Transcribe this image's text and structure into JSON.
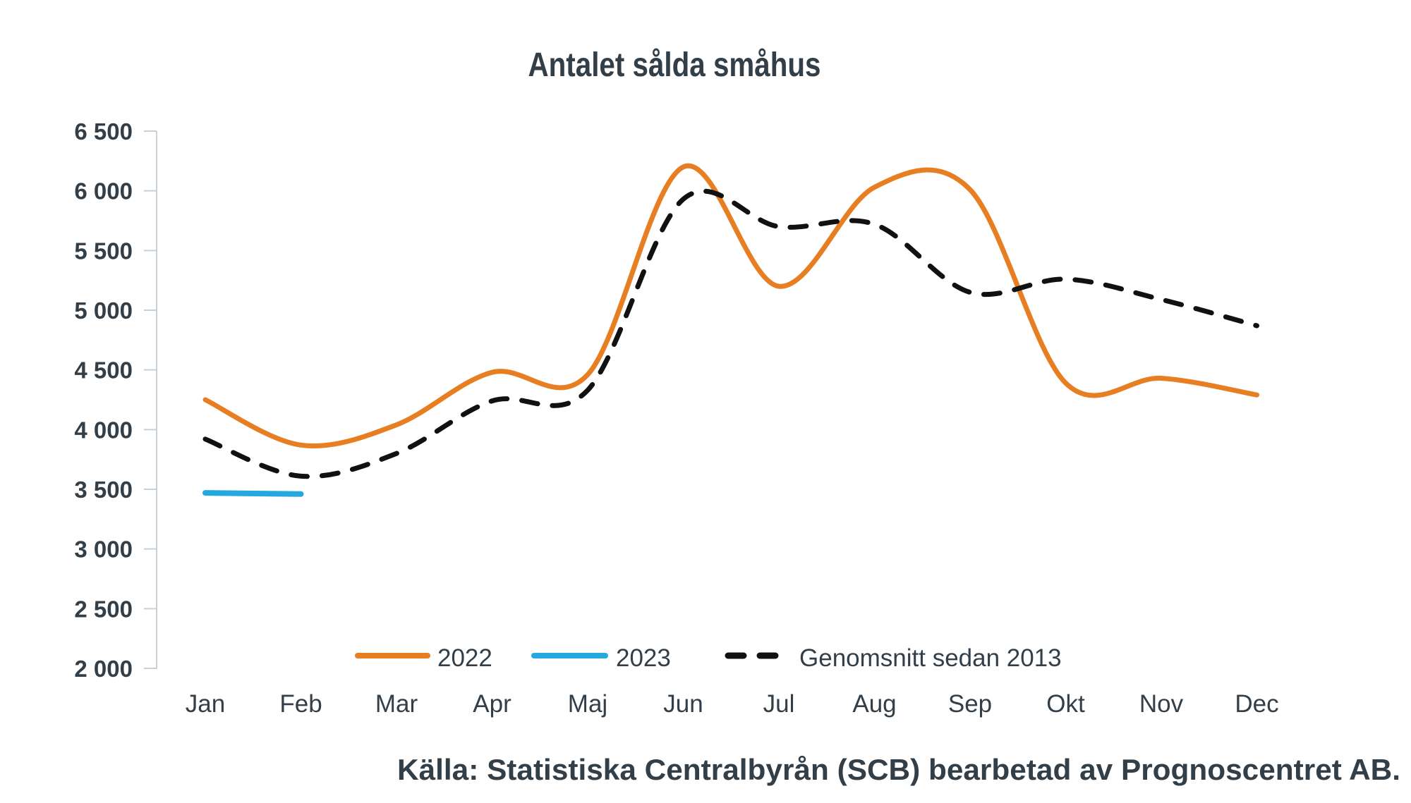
{
  "title": "Antalet sålda småhus",
  "source": "Källa: Statistiska Centralbyrån (SCB) bearbetad av Prognoscentret AB.",
  "colors": {
    "accent_orange": "#E87E22",
    "accent_blue": "#25A8DF",
    "dashed_black": "#111111",
    "text_dark": "#333F48",
    "axis_gray": "#C9D1D7",
    "background": "#FFFFFF"
  },
  "chart_data": {
    "type": "line",
    "title": "Antalet sålda småhus",
    "categories": [
      "Jan",
      "Feb",
      "Mar",
      "Apr",
      "Maj",
      "Jun",
      "Jul",
      "Aug",
      "Sep",
      "Okt",
      "Nov",
      "Dec"
    ],
    "series": [
      {
        "name": "2022",
        "color": "#E87E22",
        "style": "solid",
        "values": [
          4250,
          3870,
          4040,
          4480,
          4460,
          6200,
          5200,
          6030,
          6010,
          4390,
          4430,
          4290
        ]
      },
      {
        "name": "2023",
        "color": "#25A8DF",
        "style": "solid",
        "values": [
          3470,
          3460
        ]
      },
      {
        "name": "Genomsnitt sedan 2013",
        "color": "#111111",
        "style": "dashed",
        "values": [
          3920,
          3610,
          3800,
          4240,
          4330,
          5930,
          5700,
          5720,
          5150,
          5260,
          5090,
          4870
        ]
      }
    ],
    "ylim": [
      2000,
      6500
    ],
    "ytick_step": 500,
    "ytick_labels": [
      "2 000",
      "2 500",
      "3 000",
      "3 500",
      "4 000",
      "4 500",
      "5 000",
      "5 500",
      "6 000",
      "6 500"
    ],
    "xlabel": "",
    "ylabel": "",
    "grid": false,
    "legend_position": "bottom"
  }
}
